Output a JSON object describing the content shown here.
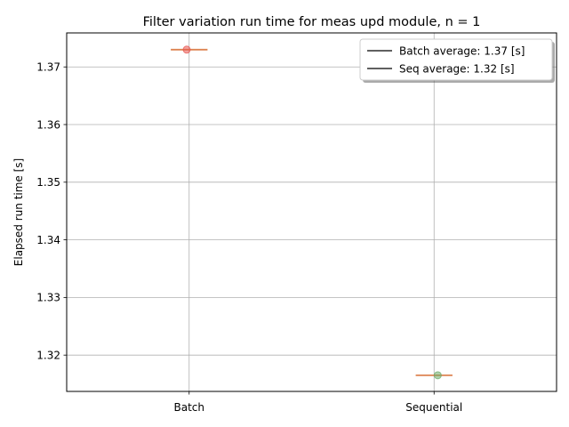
{
  "chart_data": {
    "type": "scatter",
    "title": "Filter variation run time for meas upd module, n = 1",
    "xlabel": "",
    "ylabel": "Elapsed run time [s]",
    "categories": [
      "Batch",
      "Sequential"
    ],
    "ylim": [
      1.3137,
      1.3759
    ],
    "yticks": [
      1.32,
      1.33,
      1.34,
      1.35,
      1.36,
      1.37
    ],
    "ytick_labels": [
      "1.32",
      "1.33",
      "1.34",
      "1.35",
      "1.36",
      "1.37"
    ],
    "grid": true,
    "series": [
      {
        "category": "Batch",
        "points": [
          {
            "x_offset": -0.01,
            "y": 1.373
          }
        ],
        "median": 1.373,
        "point_color": "#e8544e",
        "median_color": "#dd8452"
      },
      {
        "category": "Sequential",
        "points": [
          {
            "x_offset": 0.015,
            "y": 1.3165
          }
        ],
        "median": 1.3165,
        "point_color": "#6aaa64",
        "median_color": "#dd8452"
      }
    ],
    "legend": {
      "placement": "top-right",
      "entries": [
        {
          "label": "Batch average: 1.37 [s]",
          "color": "#000000"
        },
        {
          "label": "Seq average: 1.32 [s]",
          "color": "#000000"
        }
      ]
    },
    "colors": {
      "grid": "#b0b0b0",
      "axes": "#000000"
    }
  }
}
